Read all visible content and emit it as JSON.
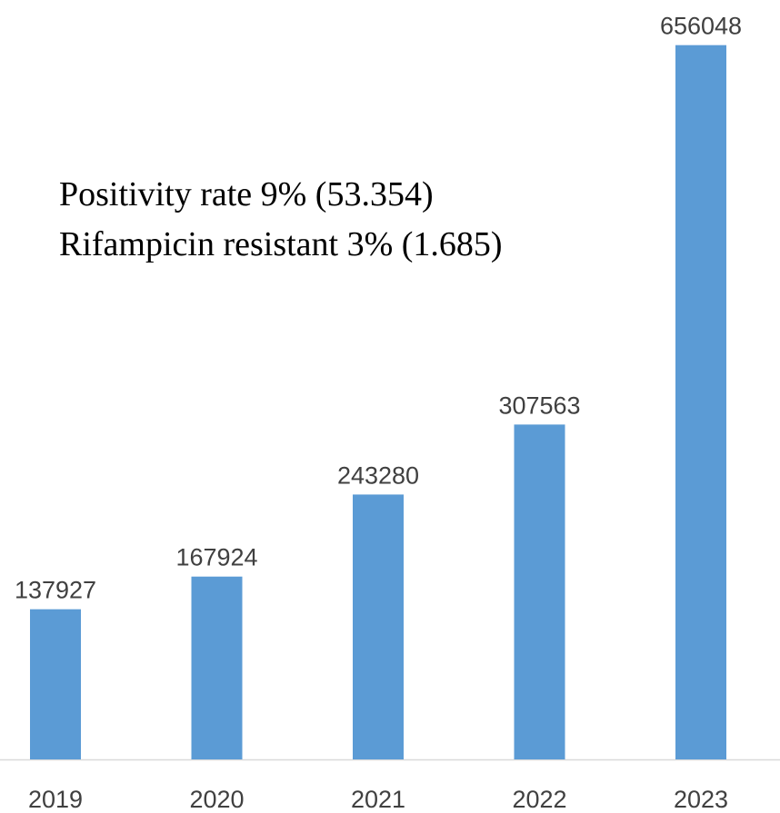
{
  "chart_data": {
    "type": "bar",
    "categories": [
      "2019",
      "2020",
      "2021",
      "2022",
      "2023"
    ],
    "values": [
      137927,
      167924,
      243280,
      307563,
      656048
    ],
    "color": "#5b9bd5",
    "ylim": [
      0,
      700000
    ],
    "annotations": [
      "Positivity rate 9% (53.354)",
      "Rifampicin resistant 3% (1.685)"
    ]
  }
}
